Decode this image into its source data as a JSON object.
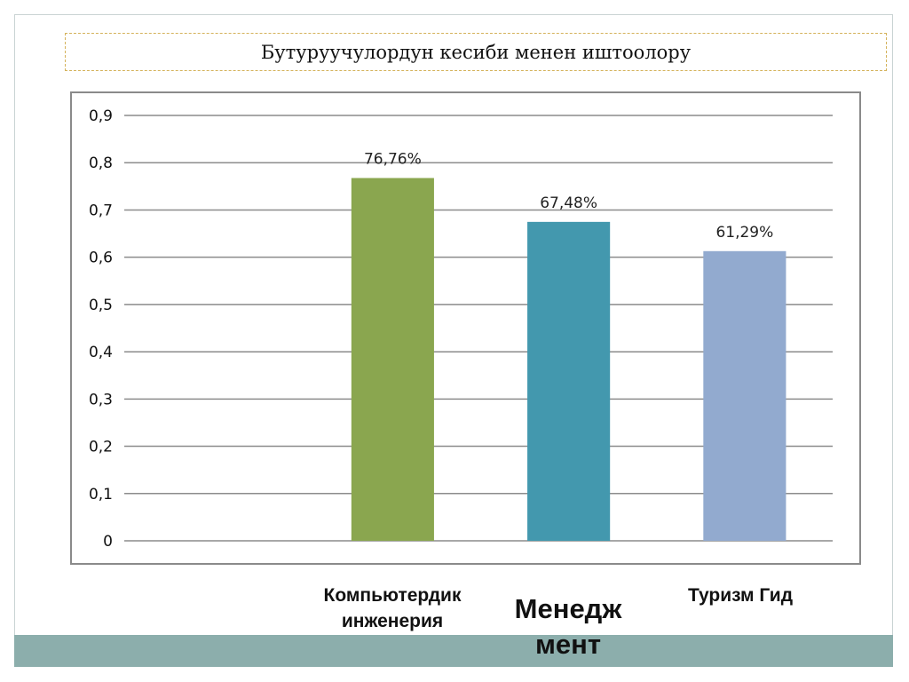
{
  "slide": {
    "title": "Бутуруучулордун кесиби менен иштоолору"
  },
  "chart_data": {
    "type": "bar",
    "categories": [
      "",
      "Компьютердик инженерия",
      "Менедж мент",
      "Туризм Гид"
    ],
    "category_label_lines": [
      [],
      [
        "Компьютердик",
        "инженерия"
      ],
      [
        "Менедж",
        "мент"
      ],
      [
        "Туризм Гид"
      ]
    ],
    "values": [
      null,
      0.7676,
      0.6748,
      0.6129
    ],
    "data_labels": [
      "",
      "76,76%",
      "67,48%",
      "61,29%"
    ],
    "bar_colors": [
      "#8aa64f",
      "#4398ae",
      "#92aacf"
    ],
    "gridline_color": "#8c8c8c",
    "yticks": [
      "0",
      "0,1",
      "0,2",
      "0,3",
      "0,4",
      "0,5",
      "0,6",
      "0,7",
      "0,8",
      "0,9"
    ],
    "ylim": [
      0,
      0.9
    ],
    "grid": true,
    "legend": "none"
  }
}
